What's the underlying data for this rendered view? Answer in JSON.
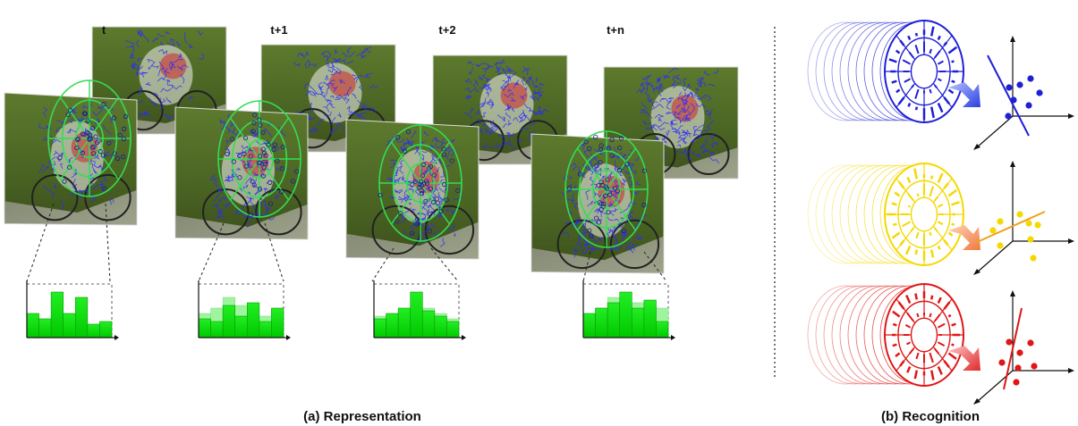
{
  "frames": [
    {
      "label": "t"
    },
    {
      "label": "t+1"
    },
    {
      "label": "t+2"
    },
    {
      "label": "t+n"
    }
  ],
  "histograms": [
    {
      "bars": [
        0.45,
        0.35,
        0.85,
        0.45,
        0.75,
        0.25,
        0.3
      ],
      "prev": []
    },
    {
      "bars": [
        0.35,
        0.3,
        0.6,
        0.4,
        0.65,
        0.3,
        0.55
      ],
      "prev": [
        0.45,
        0.55,
        0.75,
        0.6,
        0.6,
        0.4,
        0.5
      ]
    },
    {
      "bars": [
        0.35,
        0.45,
        0.55,
        0.85,
        0.5,
        0.4,
        0.3
      ],
      "prev": [
        0.4,
        0.3,
        0.5,
        0.6,
        0.55,
        0.45,
        0.35
      ]
    },
    {
      "bars": [
        0.45,
        0.55,
        0.65,
        0.85,
        0.55,
        0.7,
        0.3
      ],
      "prev": [
        0.4,
        0.55,
        0.75,
        0.6,
        0.65,
        0.6,
        0.55
      ]
    }
  ],
  "recognition": [
    {
      "color": "#1f1fd6",
      "arrow": "#3a4fe0"
    },
    {
      "color": "#f5d800",
      "arrow": "#f08a50"
    },
    {
      "color": "#e01515",
      "arrow": "#e84040"
    }
  ],
  "captions": {
    "representation": "(a) Representation",
    "recognition": "(b) Recognition"
  }
}
